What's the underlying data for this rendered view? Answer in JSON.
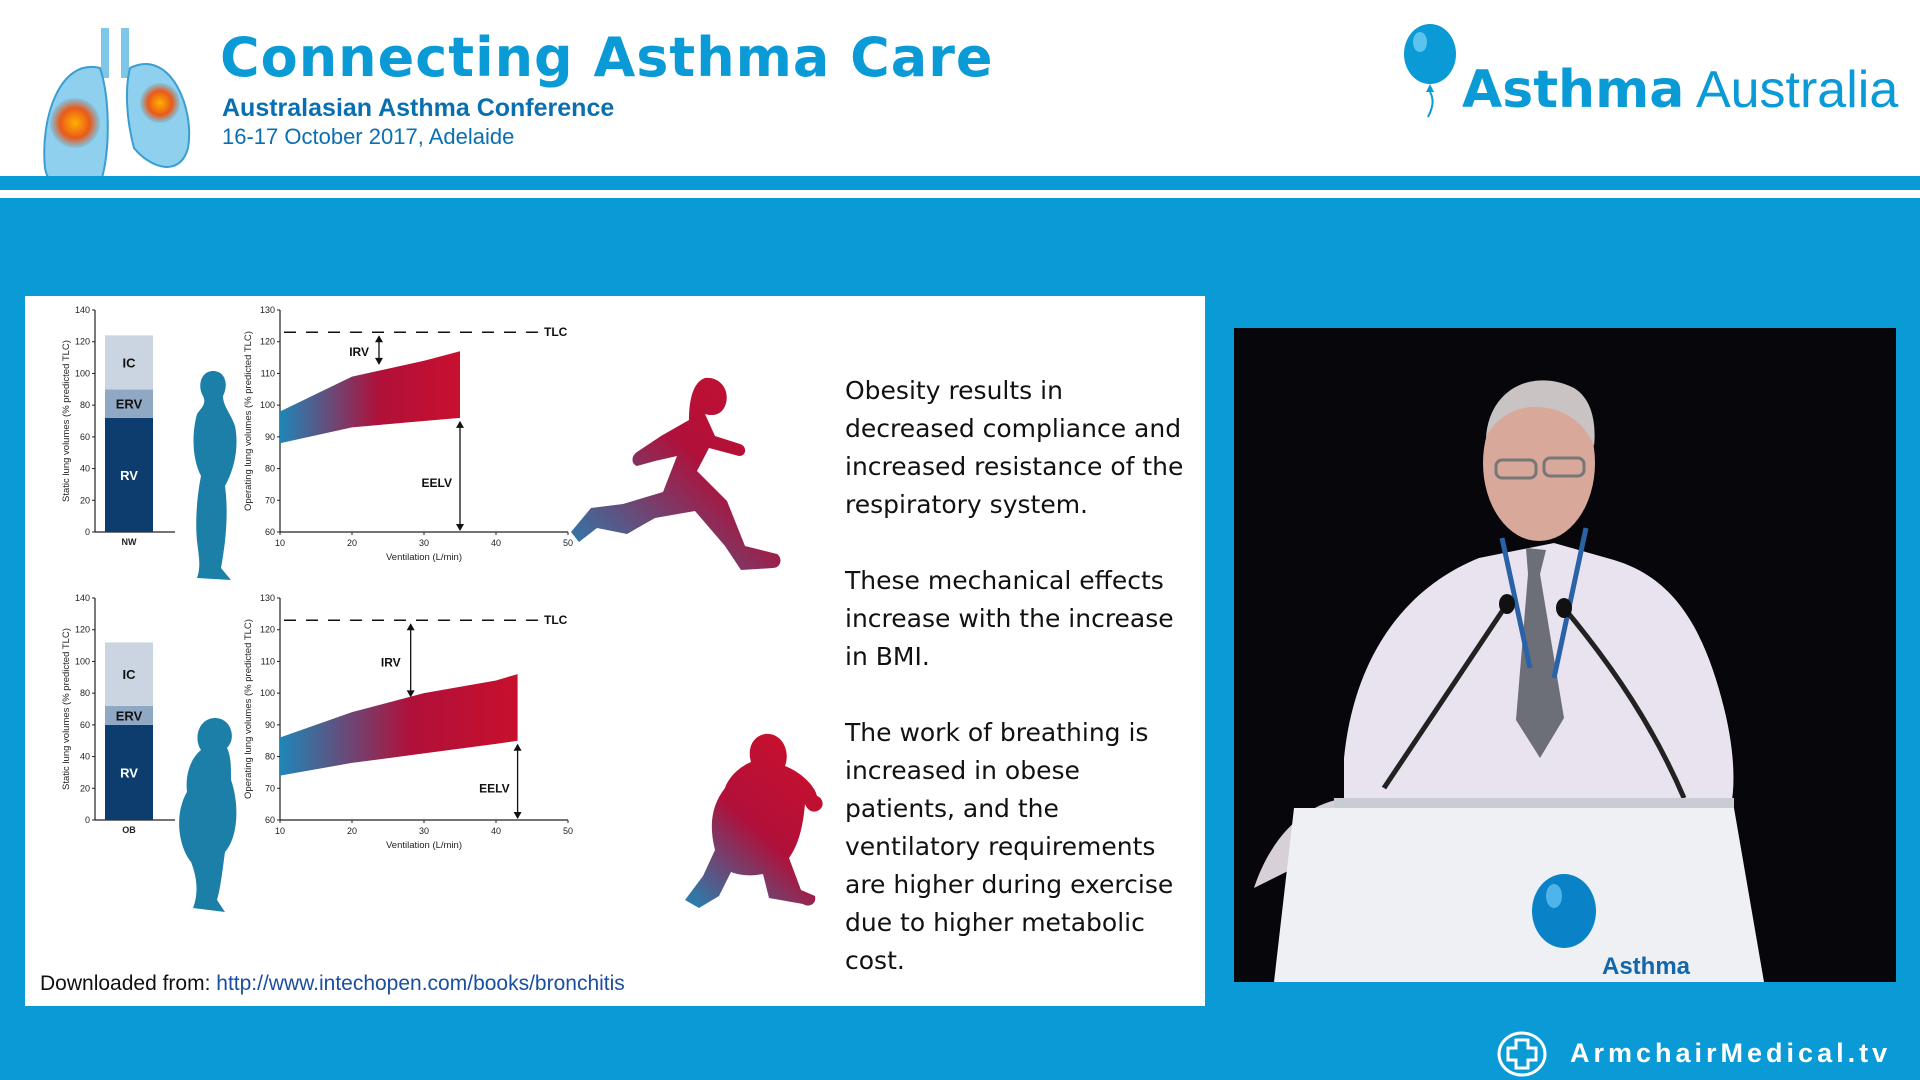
{
  "header": {
    "title": "Connecting Asthma Care",
    "subtitle": "Australasian Asthma Conference",
    "date": "16-17 October 2017, Adelaide",
    "brand_bold": "Asthma",
    "brand_light": "Australia"
  },
  "colors": {
    "brand_blue": "#0a9ad6",
    "dark_blue": "#0a6fb0",
    "rv_navy": "#0c3d6e",
    "gradient_start": "#1f86b8",
    "gradient_end": "#c8102e"
  },
  "slide": {
    "paragraphs": [
      "Obesity results in decreased compliance and increased resistance of the respiratory system.",
      "These mechanical effects increase with the increase in BMI.",
      "The work of breathing is increased in obese patients, and the ventilatory requirements are higher during exercise due to higher metabolic cost."
    ],
    "source_prefix": "Downloaded from: ",
    "source_link": "http://www.intechopen.com/books/bronchitis"
  },
  "chart_data": [
    {
      "type": "bar",
      "categories": [
        "NW"
      ],
      "series": [
        {
          "name": "RV",
          "values": [
            72
          ]
        },
        {
          "name": "ERV",
          "values": [
            18
          ]
        },
        {
          "name": "IC",
          "values": [
            34
          ]
        }
      ],
      "ylabel": "Static lung volumes (% predicted TLC)",
      "ylim": [
        0,
        140
      ],
      "yticks": [
        "0",
        "20",
        "40",
        "60",
        "80",
        "100",
        "120",
        "140"
      ]
    },
    {
      "type": "area",
      "x": [
        10,
        20,
        30,
        35
      ],
      "upper": [
        98,
        109,
        114,
        117
      ],
      "lower": [
        88,
        93,
        95,
        96
      ],
      "ylabel": "Operating lung volumes (% predicted TLC)",
      "xlabel": "Ventilation (L/min)",
      "xlim": [
        10,
        50
      ],
      "ylim": [
        60,
        130
      ],
      "xticks": [
        "10",
        "20",
        "30",
        "40",
        "50"
      ],
      "yticks": [
        "60",
        "70",
        "80",
        "90",
        "100",
        "110",
        "120",
        "130"
      ],
      "tlc": 123,
      "annotations": [
        "TLC",
        "IRV",
        "EELV"
      ]
    },
    {
      "type": "bar",
      "categories": [
        "OB"
      ],
      "series": [
        {
          "name": "RV",
          "values": [
            60
          ]
        },
        {
          "name": "ERV",
          "values": [
            12
          ]
        },
        {
          "name": "IC",
          "values": [
            40
          ]
        }
      ],
      "ylabel": "Static lung volumes (% predicted TLC)",
      "ylim": [
        0,
        140
      ],
      "yticks": [
        "0",
        "20",
        "40",
        "60",
        "80",
        "100",
        "120",
        "140"
      ]
    },
    {
      "type": "area",
      "x": [
        10,
        20,
        30,
        40,
        43
      ],
      "upper": [
        86,
        94,
        100,
        104,
        106
      ],
      "lower": [
        74,
        78,
        81,
        84,
        85
      ],
      "ylabel": "Operating lung volumes (% predicted TLC)",
      "xlabel": "Ventilation (L/min)",
      "xlim": [
        10,
        50
      ],
      "ylim": [
        60,
        130
      ],
      "xticks": [
        "10",
        "20",
        "30",
        "40",
        "50"
      ],
      "yticks": [
        "60",
        "70",
        "80",
        "90",
        "100",
        "110",
        "120",
        "130"
      ],
      "tlc": 123,
      "annotations": [
        "TLC",
        "IRV",
        "EELV"
      ]
    }
  ],
  "video": {
    "lectern_bold": "Asthma"
  },
  "footer": {
    "brand": "ArmchairMedical.tv"
  }
}
